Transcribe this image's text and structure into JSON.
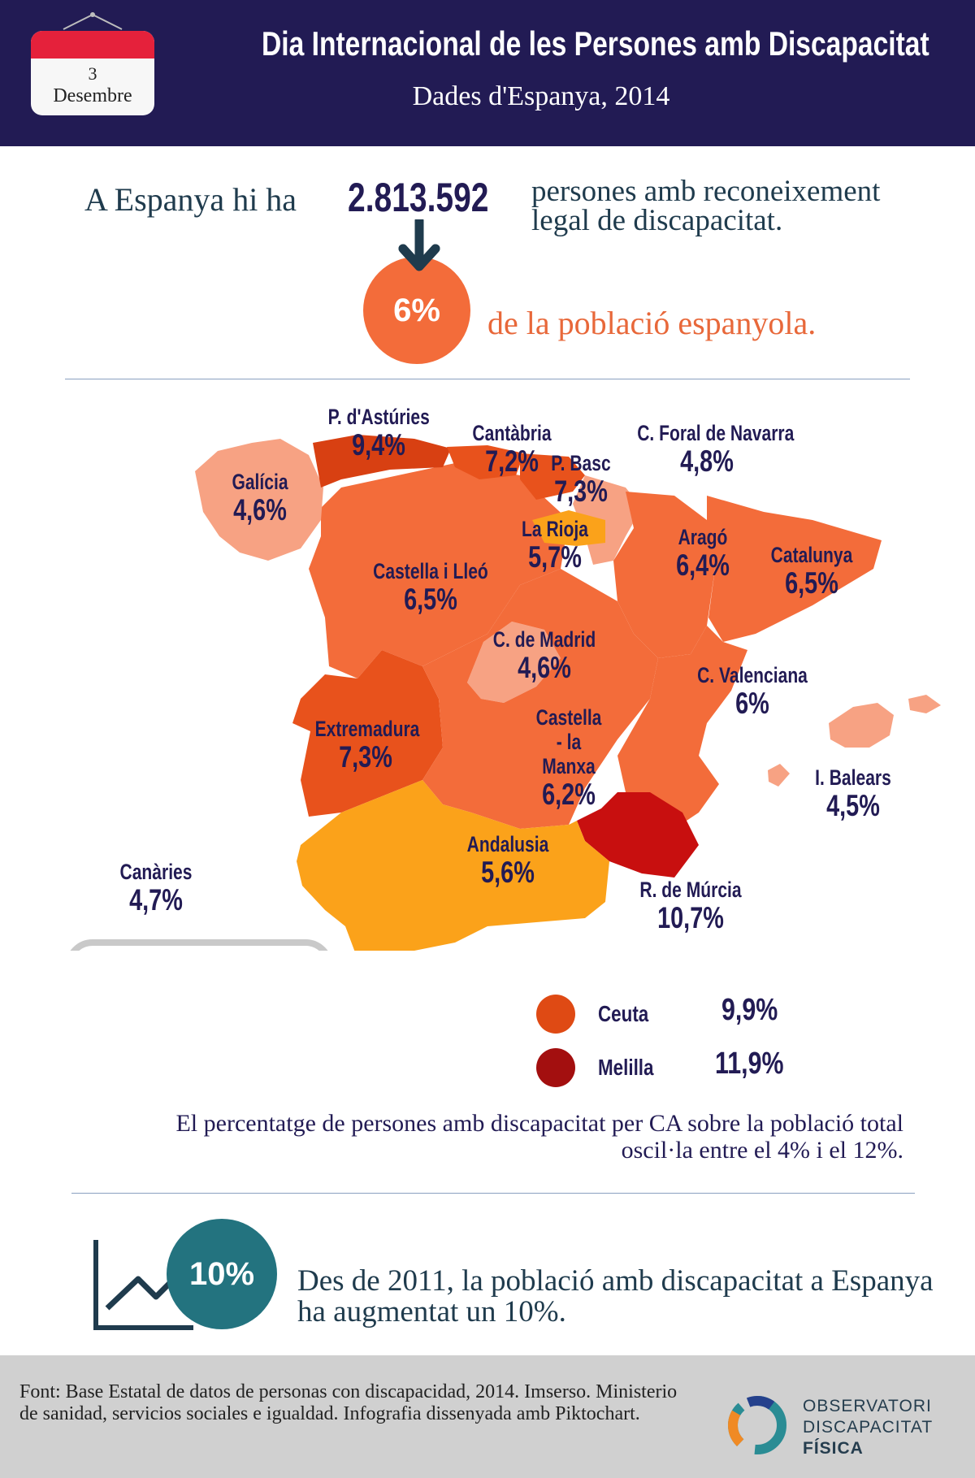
{
  "header": {
    "calendar_day": "3",
    "calendar_month": "Desembre",
    "title": "Dia Internacional de les Persones amb Discapacitat",
    "subtitle": "Dades d'Espanya, 2014"
  },
  "intro": {
    "lead": "A Espanya hi ha",
    "number": "2.813.592",
    "rest": "persones amb reconeixement legal de discapacitat.",
    "percent": "6%",
    "percent_text": "de la població espanyola."
  },
  "regions": {
    "asturies": {
      "name": "P. d'Astúries",
      "value": "9,4%"
    },
    "cantabria": {
      "name": "Cantàbria",
      "value": "7,2%"
    },
    "navarra": {
      "name": "C. Foral de Navarra",
      "value": "4,8%"
    },
    "pbasc": {
      "name": "P. Basc",
      "value": "7,3%"
    },
    "galicia": {
      "name": "Galícia",
      "value": "4,6%"
    },
    "larioja": {
      "name": "La Rioja",
      "value": "5,7%"
    },
    "arago": {
      "name": "Aragó",
      "value": "6,4%"
    },
    "catalunya": {
      "name": "Catalunya",
      "value": "6,5%"
    },
    "castella_lleo": {
      "name": "Castella i Lleó",
      "value": "6,5%"
    },
    "madrid": {
      "name": "C. de Madrid",
      "value": "4,6%"
    },
    "valenciana": {
      "name": "C. Valenciana",
      "value": "6%"
    },
    "extremadura": {
      "name": "Extremadura",
      "value": "7,3%"
    },
    "castella_manxa": {
      "name": "Castella - la Manxa",
      "value": "6,2%"
    },
    "balears": {
      "name": "I. Balears",
      "value": "4,5%"
    },
    "andalusia": {
      "name": "Andalusia",
      "value": "5,6%"
    },
    "canaries": {
      "name": "Canàries",
      "value": "4,7%"
    },
    "murcia": {
      "name": "R. de Múrcia",
      "value": "10,7%"
    }
  },
  "legend": {
    "ceuta": {
      "name": "Ceuta",
      "value": "9,9%"
    },
    "melilla": {
      "name": "Melilla",
      "value": "11,9%"
    }
  },
  "note": "El percentatge de persones amb discapacitat per CA sobre la població total oscil·la entre el 4% i el 12%.",
  "growth": {
    "percent": "10%",
    "text": "Des de 2011, la població amb discapacitat a Espanya ha augmentat un 10%."
  },
  "footer": {
    "source": "Font: Base Estatal de datos de personas con discapacidad, 2014. Imserso. Ministerio de sanidad, servicios sociales e igualdad. Infografia dissenyada amb Piktochart.",
    "logo_line1": "OBSERVATORI",
    "logo_line2": "DISCAPACITAT",
    "logo_line3": "FÍSICA"
  },
  "colors": {
    "header_bg": "#221b54",
    "calendar_red": "#e5213b",
    "accent_orange": "#f36c3a",
    "teal": "#23737f",
    "region_light": "#f7a283",
    "region_mid": "#f36c3a",
    "region_dark": "#e8521c",
    "region_deep": "#d84012",
    "region_yellow": "#fba21a",
    "murcia_red": "#c80f0f",
    "ceuta": "#df4a14",
    "melilla": "#a30f0f"
  }
}
